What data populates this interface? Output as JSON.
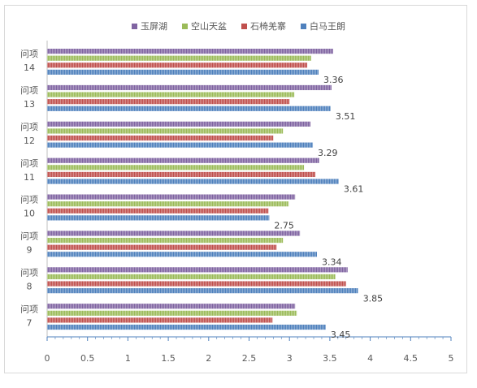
{
  "chart_data": {
    "type": "bar",
    "orientation": "horizontal",
    "categories": [
      "问项\n14",
      "问项\n13",
      "问项\n12",
      "问项\n11",
      "问项\n10",
      "问项\n9",
      "问项\n8",
      "问项\n7"
    ],
    "series": [
      {
        "name": "玉屏湖",
        "color": "#8064a2",
        "values": [
          3.54,
          3.52,
          3.26,
          3.37,
          3.07,
          3.13,
          3.72,
          3.07
        ]
      },
      {
        "name": "空山天盆",
        "color": "#9bbb59",
        "values": [
          3.27,
          3.06,
          2.92,
          3.18,
          2.99,
          2.92,
          3.57,
          3.09
        ]
      },
      {
        "name": "石椅羌寨",
        "color": "#c0504d",
        "values": [
          3.22,
          3.0,
          2.8,
          3.32,
          2.74,
          2.84,
          3.7,
          2.79
        ]
      },
      {
        "name": "白马王朗",
        "color": "#4f81bd",
        "values": [
          3.36,
          3.51,
          3.29,
          3.61,
          2.75,
          3.34,
          3.85,
          3.45
        ]
      }
    ],
    "data_labels_series": "白马王朗",
    "data_labels": [
      "3.36",
      "3.51",
      "3.29",
      "3.61",
      "2.75",
      "3.34",
      "3.85",
      "3.45"
    ],
    "x_ticks": [
      "0",
      "0.5",
      "1",
      "1.5",
      "2",
      "2.5",
      "3",
      "3.5",
      "4",
      "4.5",
      "5"
    ],
    "xlim": [
      0,
      5
    ],
    "grid": false,
    "legend_position": "top",
    "legend_order": [
      "玉屏湖",
      "空山天盆",
      "石椅羌寨",
      "白马王朗"
    ]
  }
}
